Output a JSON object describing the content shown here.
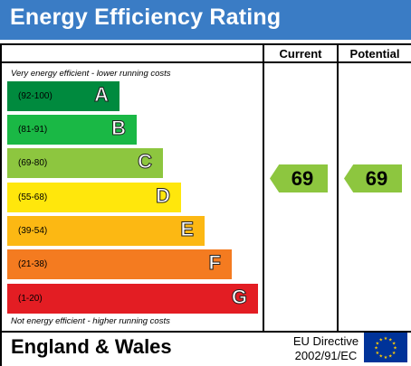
{
  "title": "Energy Efficiency Rating",
  "columns": {
    "current": "Current",
    "potential": "Potential"
  },
  "caption_top": "Very energy efficient - lower running costs",
  "caption_bottom": "Not energy efficient - higher running costs",
  "bands": [
    {
      "range": "(92-100)",
      "letter": "A",
      "color": "#008a3e"
    },
    {
      "range": "(81-91)",
      "letter": "B",
      "color": "#1ab845"
    },
    {
      "range": "(69-80)",
      "letter": "C",
      "color": "#8dc63f"
    },
    {
      "range": "(55-68)",
      "letter": "D",
      "color": "#ffe70c"
    },
    {
      "range": "(39-54)",
      "letter": "E",
      "color": "#fcb813"
    },
    {
      "range": "(21-38)",
      "letter": "F",
      "color": "#f47b20"
    },
    {
      "range": "(1-20)",
      "letter": "G",
      "color": "#e31d23"
    }
  ],
  "current": {
    "value": "69",
    "color": "#8dc63f"
  },
  "potential": {
    "value": "69",
    "color": "#8dc63f"
  },
  "footer": {
    "region": "England & Wales",
    "directive_line1": "EU Directive",
    "directive_line2": "2002/91/EC"
  }
}
